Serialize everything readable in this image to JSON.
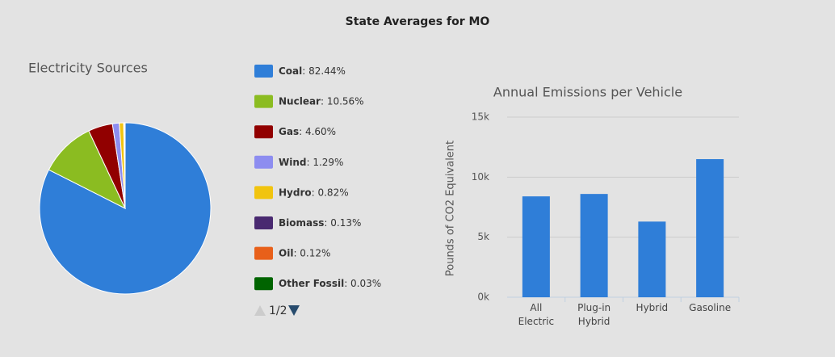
{
  "title": "State Averages for MO",
  "chart_data": [
    {
      "type": "pie",
      "title": "Electricity Sources",
      "categories": [
        "Coal",
        "Nuclear",
        "Gas",
        "Wind",
        "Hydro",
        "Biomass",
        "Oil",
        "Other Fossil"
      ],
      "values": [
        82.44,
        10.56,
        4.6,
        1.29,
        0.82,
        0.13,
        0.12,
        0.03
      ],
      "value_labels": [
        ": 82.44%",
        ": 10.56%",
        ": 4.60%",
        ": 1.29%",
        ": 0.82%",
        ": 0.13%",
        ": 0.12%",
        ": 0.03%"
      ],
      "colors": [
        "#2f7ed8",
        "#8bbc21",
        "#910000",
        "#8d8df0",
        "#f1c40f",
        "#492970",
        "#e8601a",
        "#006400"
      ],
      "pager": "1/2"
    },
    {
      "type": "bar",
      "title": "Annual Emissions per Vehicle",
      "ylabel": "Pounds of CO2 Equivalent",
      "categories": [
        "All Electric",
        "Plug-in Hybrid",
        "Hybrid",
        "Gasoline"
      ],
      "values": [
        8400,
        8600,
        6300,
        11500
      ],
      "color": "#2f7ed8",
      "ylim": [
        0,
        15000
      ],
      "yticks": [
        {
          "value": 0,
          "label": "0k"
        },
        {
          "value": 5000,
          "label": "5k"
        },
        {
          "value": 10000,
          "label": "10k"
        },
        {
          "value": 15000,
          "label": "15k"
        }
      ],
      "grid": true
    }
  ]
}
